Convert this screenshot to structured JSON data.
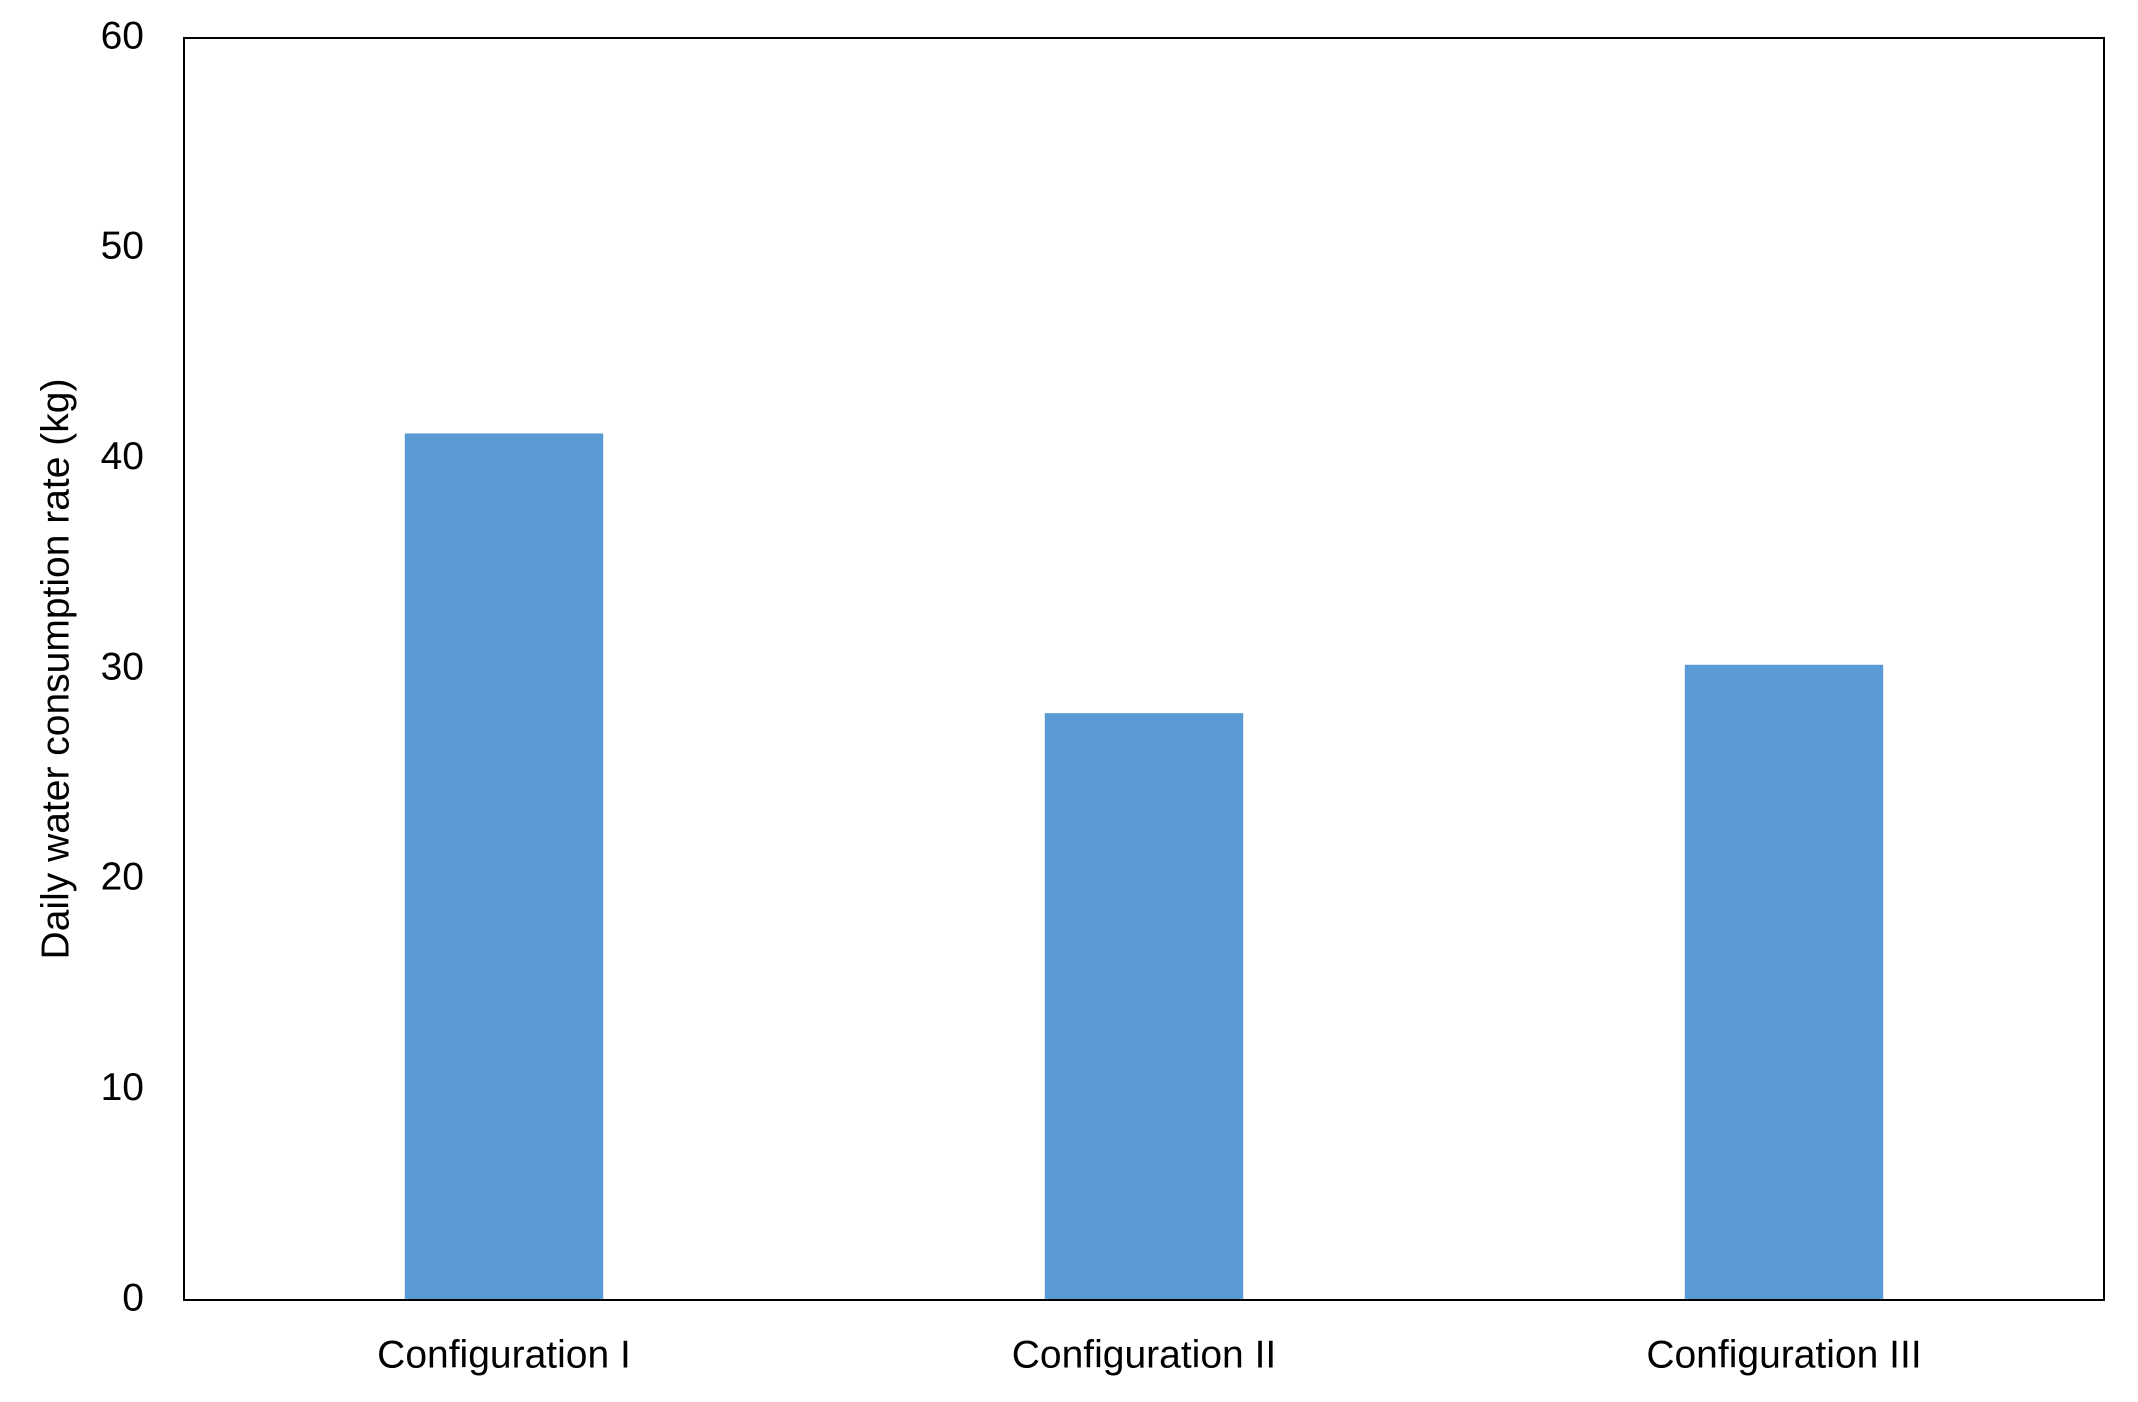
{
  "chart_data": {
    "type": "bar",
    "y_label": "Daily water consumption rate (kg)",
    "categories": [
      "Configuration I",
      "Configuration II",
      "Configuration III"
    ],
    "values": [
      41.2,
      27.9,
      30.2
    ],
    "color": "#5b9bd5",
    "ylim": [
      0,
      60
    ],
    "yticks": [
      0,
      10,
      20,
      30,
      40,
      50,
      60
    ],
    "grid": false
  }
}
